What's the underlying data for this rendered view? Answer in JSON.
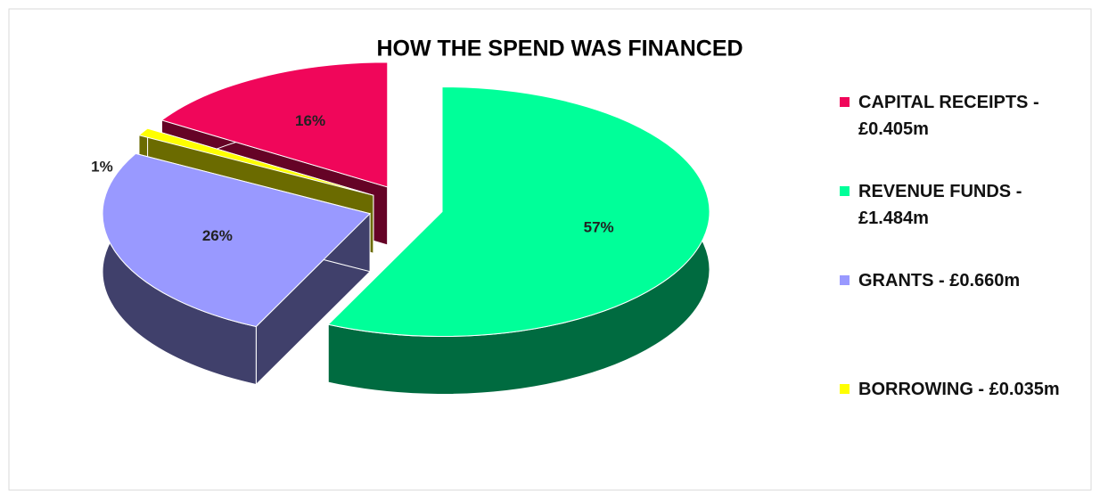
{
  "chart_data": {
    "type": "pie3d",
    "title": "HOW THE SPEND WAS FINANCED",
    "categories": [
      "CAPITAL RECEIPTS - £0.405m",
      "REVENUE FUNDS - £1.484m",
      "GRANTS - £0.660m",
      "BORROWING - £0.035m"
    ],
    "values": [
      16,
      57,
      26,
      1
    ],
    "value_labels": [
      "16%",
      "57%",
      "26%",
      "1%"
    ],
    "colors": [
      "#f0065a",
      "#00ff99",
      "#9999ff",
      "#ffff00"
    ],
    "legend": "right"
  }
}
